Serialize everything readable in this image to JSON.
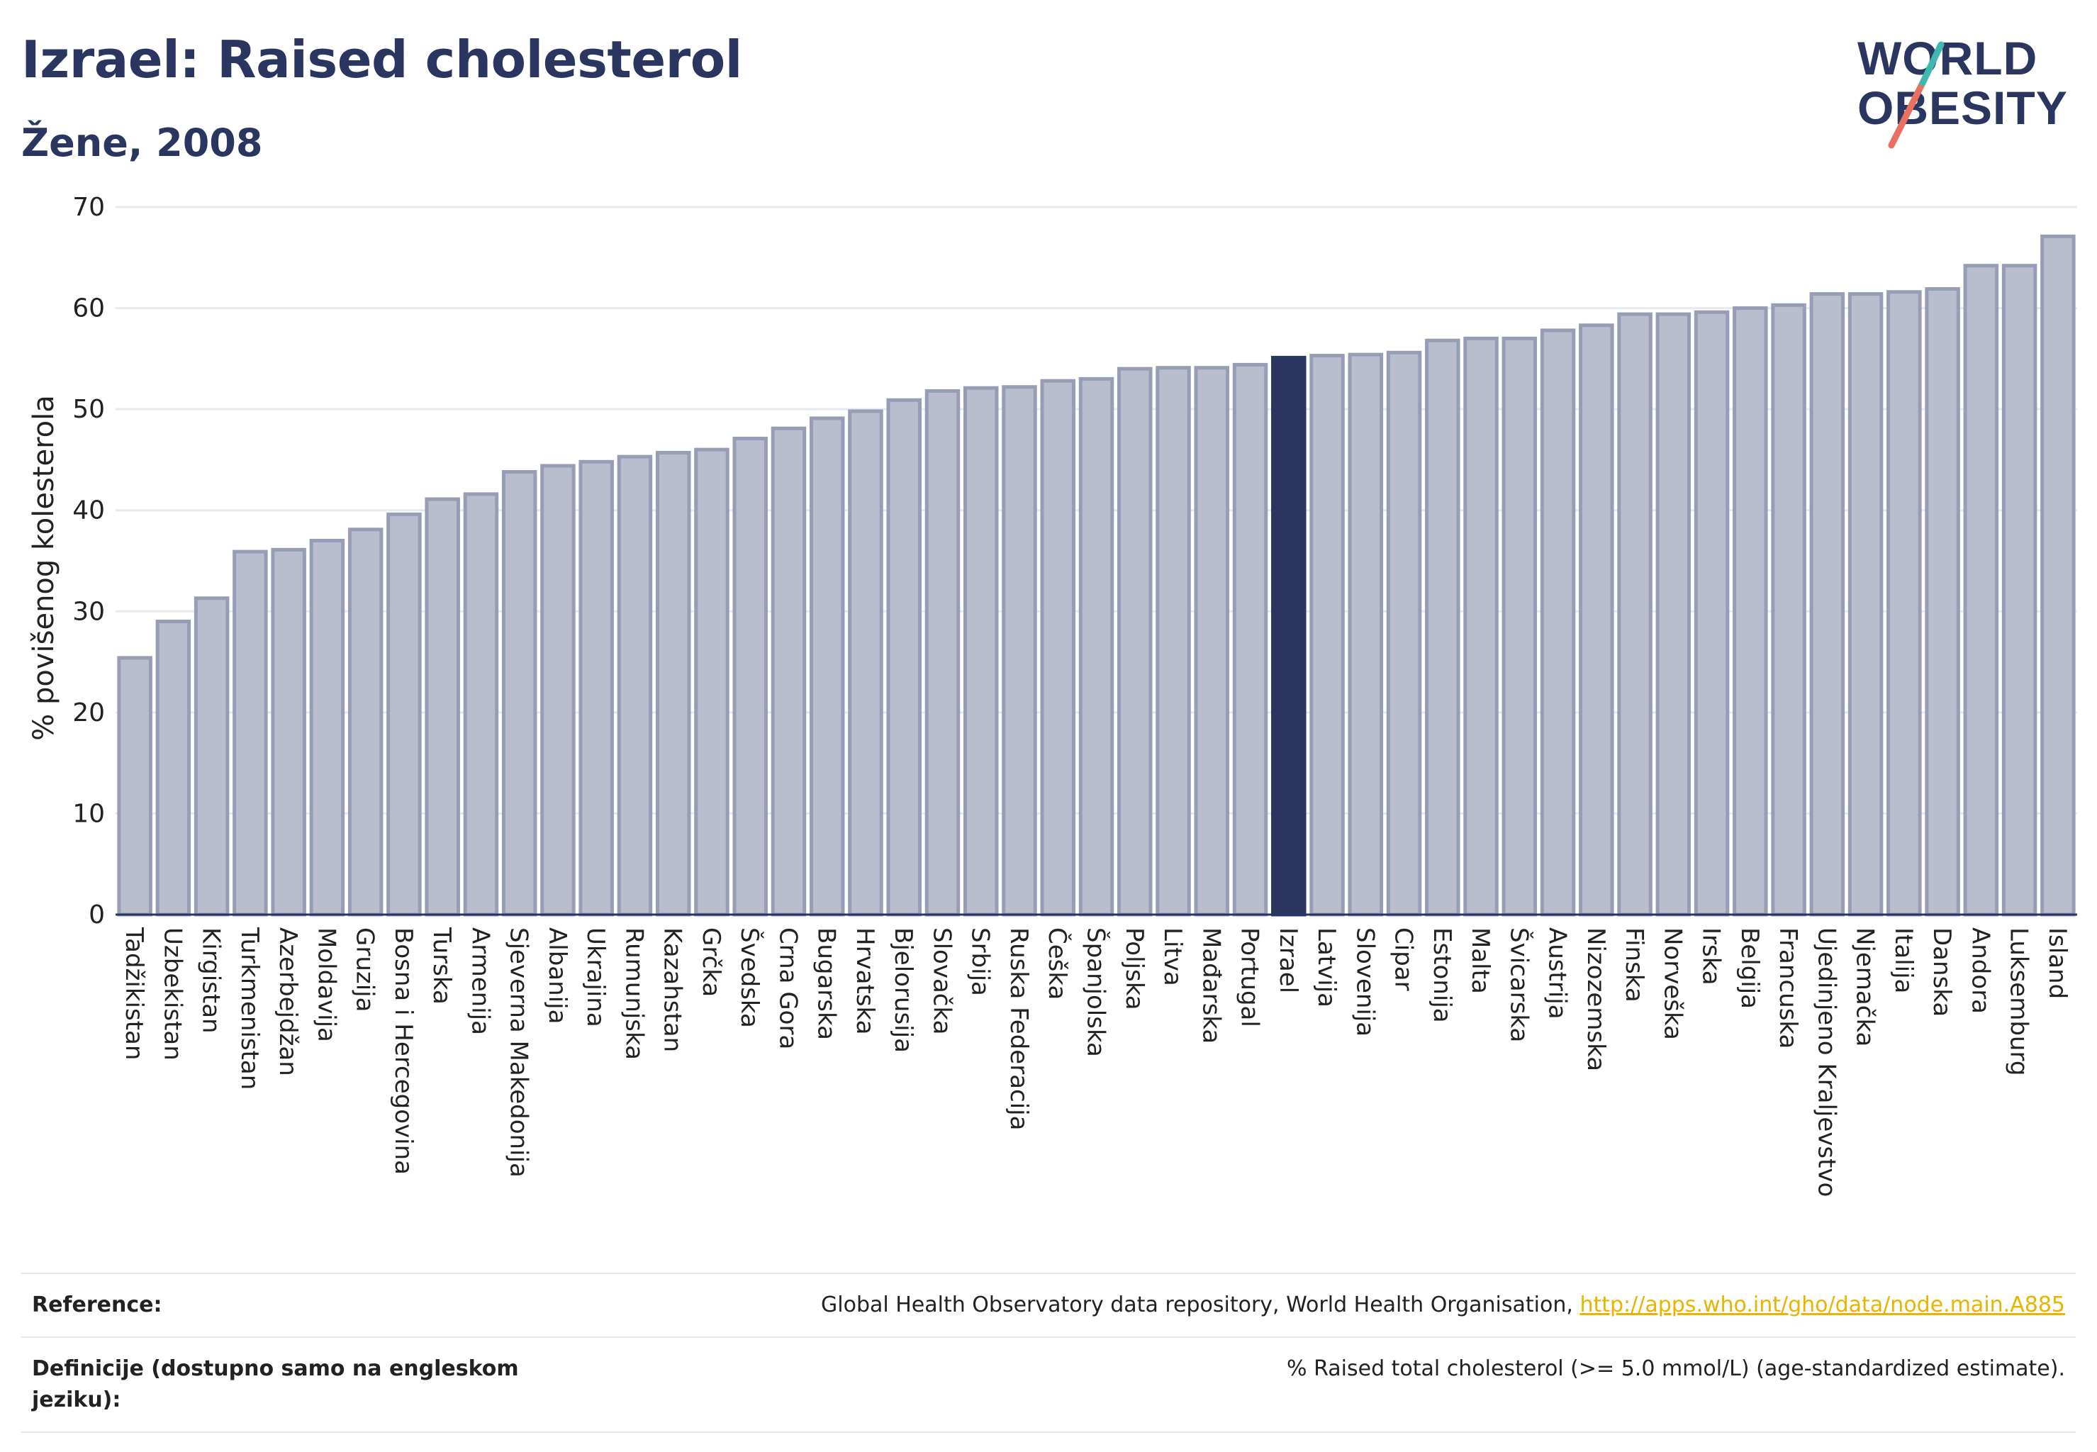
{
  "header": {
    "title": "Izrael: Raised cholesterol",
    "subtitle": "Žene, 2008"
  },
  "logo": {
    "line1": "WORLD",
    "line2": "OBESITY"
  },
  "colors": {
    "bar": "#b9bdcd",
    "bar_stroke": "#969db5",
    "highlight": "#2a3560",
    "grid": "#e8e9ee"
  },
  "chart_data": {
    "type": "bar",
    "ylabel": "% povišenog kolesterola",
    "ylim": [
      0,
      70
    ],
    "yticks": [
      0,
      10,
      20,
      30,
      40,
      50,
      60,
      70
    ],
    "highlight": "Izrael",
    "categories": [
      "Tadžikistan",
      "Uzbekistan",
      "Kirgistan",
      "Turkmenistan",
      "Azerbejdžan",
      "Moldavija",
      "Gruzija",
      "Bosna i Hercegovina",
      "Turska",
      "Armenija",
      "Sjeverna Makedonija",
      "Albanija",
      "Ukrajina",
      "Rumunjska",
      "Kazahstan",
      "Grčka",
      "Švedska",
      "Crna Gora",
      "Bugarska",
      "Hrvatska",
      "Bjelorusija",
      "Slovačka",
      "Srbija",
      "Ruska Federacija",
      "Češka",
      "Španjolska",
      "Poljska",
      "Litva",
      "Mađarska",
      "Portugal",
      "Izrael",
      "Latvija",
      "Slovenija",
      "Cipar",
      "Estonija",
      "Malta",
      "Švicarska",
      "Austrija",
      "Nizozemska",
      "Finska",
      "Norveška",
      "Irska",
      "Belgija",
      "Francuska",
      "Ujedinjeno Kraljevstvo",
      "Njemačka",
      "Italija",
      "Danska",
      "Andora",
      "Luksemburg",
      "Island"
    ],
    "values": [
      25.4,
      29.0,
      31.3,
      35.9,
      36.1,
      37.0,
      38.1,
      39.6,
      41.1,
      41.6,
      43.8,
      44.4,
      44.8,
      45.3,
      45.7,
      46.0,
      47.1,
      48.1,
      49.1,
      49.8,
      50.9,
      51.8,
      52.1,
      52.2,
      52.8,
      53.0,
      54.0,
      54.1,
      54.1,
      54.4,
      55.1,
      55.3,
      55.4,
      55.6,
      56.8,
      57.0,
      57.0,
      57.8,
      58.3,
      59.4,
      59.4,
      59.6,
      60.0,
      60.3,
      61.4,
      61.4,
      61.6,
      61.9,
      64.2,
      64.2,
      67.1
    ]
  },
  "reference": {
    "row1_label": "Reference:",
    "row1_text": "Global Health Observatory data repository, World Health Organisation, ",
    "row1_link": "http://apps.who.int/gho/data/node.main.A885",
    "row2_label": "Definicije (dostupno samo na engleskom jeziku):",
    "row2_text": "% Raised total cholesterol (>= 5.0 mmol/L) (age-standardized estimate)."
  }
}
